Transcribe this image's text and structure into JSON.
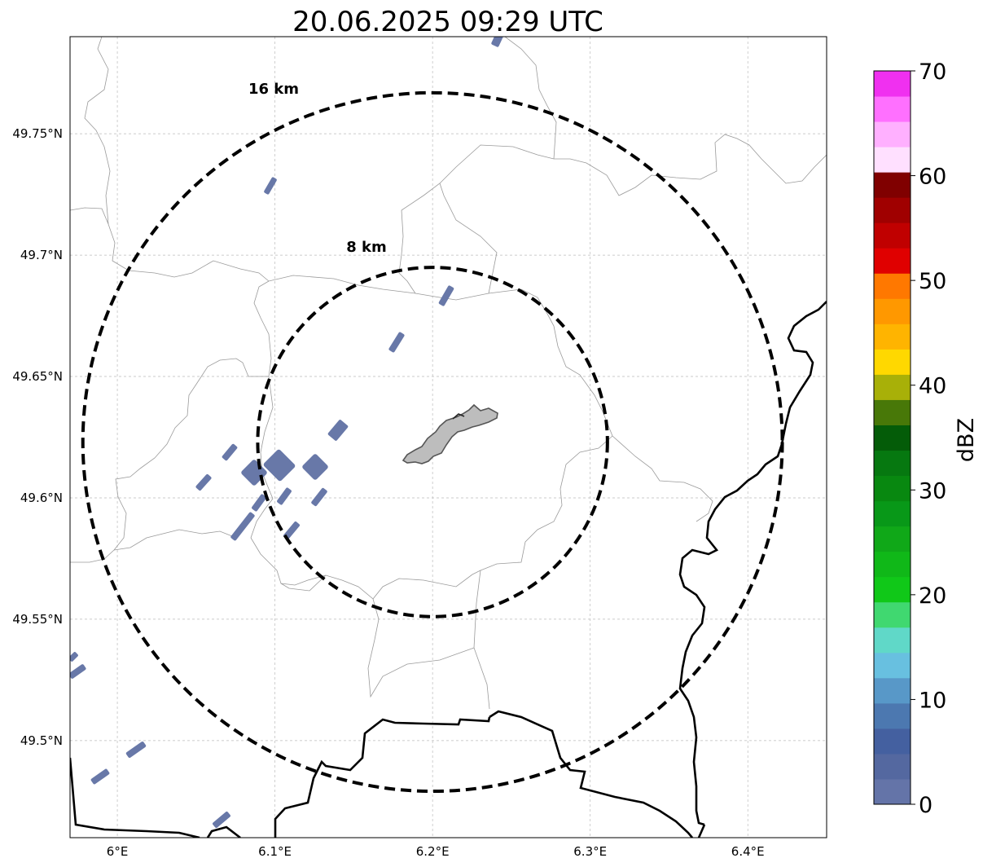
{
  "title": "20.06.2025 09:29 UTC",
  "map": {
    "lon_range": [
      5.97,
      6.45
    ],
    "lat_range": [
      49.46,
      49.79
    ],
    "lon_ticks": [
      {
        "value": 6.0,
        "label": "6°E"
      },
      {
        "value": 6.1,
        "label": "6.1°E"
      },
      {
        "value": 6.2,
        "label": "6.2°E"
      },
      {
        "value": 6.3,
        "label": "6.3°E"
      },
      {
        "value": 6.4,
        "label": "6.4°E"
      }
    ],
    "lat_ticks": [
      {
        "value": 49.5,
        "label": "49.5°N"
      },
      {
        "value": 49.55,
        "label": "49.55°N"
      },
      {
        "value": 49.6,
        "label": "49.6°N"
      },
      {
        "value": 49.65,
        "label": "49.65°N"
      },
      {
        "value": 49.7,
        "label": "49.7°N"
      },
      {
        "value": 49.75,
        "label": "49.75°N"
      }
    ],
    "center": {
      "lon": 6.2,
      "lat": 49.623
    },
    "range_rings": [
      {
        "radius_km": 8,
        "label": "8 km"
      },
      {
        "radius_km": 16,
        "label": "16 km"
      }
    ],
    "city_area_name": "city-outline",
    "echo_color": "#6878a8"
  },
  "colorbar": {
    "label": "dBZ",
    "min": 0,
    "max": 70,
    "tick_labels": [
      "0",
      "10",
      "20",
      "30",
      "40",
      "50",
      "60",
      "70"
    ],
    "colors": [
      "#6474a8",
      "#5468a0",
      "#4460a0",
      "#4c78b0",
      "#5898c8",
      "#68c0e0",
      "#60d8c8",
      "#40d870",
      "#10c818",
      "#10b818",
      "#10a818",
      "#089818",
      "#088810",
      "#067810",
      "#045c08",
      "#487808",
      "#a8b008",
      "#ffd800",
      "#ffb400",
      "#ff9800",
      "#ff7800",
      "#e00000",
      "#c00000",
      "#a00000",
      "#800000",
      "#ffe0ff",
      "#ffb0ff",
      "#ff70ff",
      "#f030f0"
    ]
  }
}
